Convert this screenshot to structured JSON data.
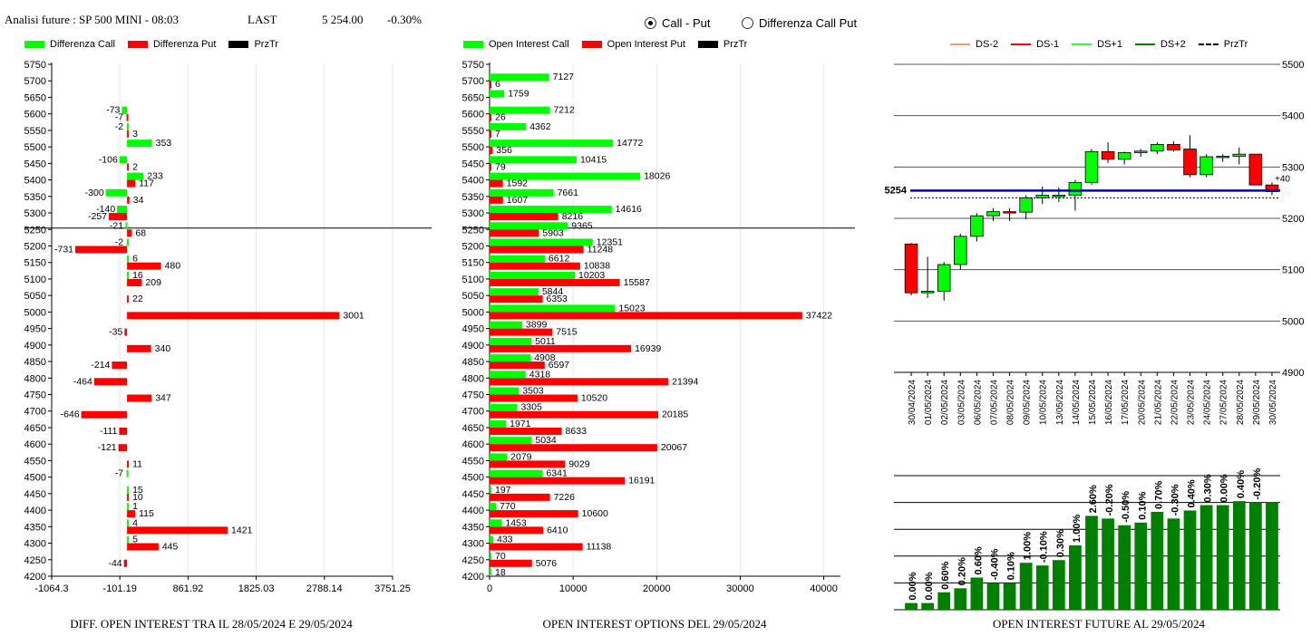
{
  "header": {
    "title": "Analisi future : SP 500 MINI - 08:03",
    "last_label": "LAST",
    "last_value": "5 254.00",
    "change": "-0.30%"
  },
  "view_mode": {
    "options": [
      "Call - Put",
      "Differenza Call Put"
    ],
    "selected": "Call - Put"
  },
  "colors": {
    "call": "#00ff00",
    "put": "#ff0000",
    "price": "#0000cc",
    "bar": "#008000"
  },
  "legend1": [
    "Differenza Call",
    "Differenza Put",
    "PrzTr"
  ],
  "legend2": [
    "Open Interest Call",
    "Open Interest Put",
    "PrzTr"
  ],
  "legend3": [
    "DS-2",
    "DS-1",
    "DS+1",
    "DS+2",
    "PrzTr"
  ],
  "captions": {
    "chart1": "DIFF. OPEN INTEREST TRA IL 28/05/2024 E 29/05/2024",
    "chart2": "OPEN INTEREST OPTIONS DEL 29/05/2024",
    "chart3": "OPEN INTEREST FUTURE AL 29/05/2024"
  },
  "chart_data": [
    {
      "type": "bar",
      "orientation": "horizontal",
      "strikes": [
        5750,
        5700,
        5650,
        5600,
        5550,
        5500,
        5450,
        5400,
        5350,
        5300,
        5250,
        5200,
        5150,
        5100,
        5050,
        5000,
        4950,
        4900,
        4850,
        4800,
        4750,
        4700,
        4650,
        4600,
        4550,
        4500,
        4450,
        4400,
        4350,
        4300,
        4250,
        4200
      ],
      "series": [
        {
          "name": "Differenza Call",
          "values": [
            null,
            null,
            null,
            -73,
            -2,
            353,
            -106,
            233,
            -300,
            -140,
            -21,
            -2,
            6,
            16,
            null,
            null,
            null,
            null,
            null,
            null,
            null,
            null,
            null,
            null,
            null,
            -7,
            15,
            1,
            4,
            5,
            null,
            null
          ]
        },
        {
          "name": "Differenza Put",
          "values": [
            null,
            null,
            null,
            -7,
            3,
            null,
            2,
            117,
            34,
            -257,
            68,
            -731,
            480,
            209,
            22,
            3001,
            -35,
            340,
            -214,
            -464,
            347,
            -646,
            -111,
            -121,
            11,
            null,
            10,
            115,
            1421,
            445,
            -44,
            null
          ]
        }
      ],
      "price_level": 5254,
      "xticks": [
        "-1064.3",
        "-101.19",
        "861.92",
        "1825.03",
        "2788.14",
        "3751.25"
      ],
      "xlim": [
        -1064.3,
        3751.25
      ]
    },
    {
      "type": "bar",
      "orientation": "horizontal",
      "strikes": [
        5750,
        5700,
        5650,
        5600,
        5550,
        5500,
        5450,
        5400,
        5350,
        5300,
        5250,
        5200,
        5150,
        5100,
        5050,
        5000,
        4950,
        4900,
        4850,
        4800,
        4750,
        4700,
        4650,
        4600,
        4550,
        4500,
        4450,
        4400,
        4350,
        4300,
        4250,
        4200
      ],
      "series": [
        {
          "name": "Open Interest Call",
          "values": [
            null,
            7127,
            1759,
            7212,
            4362,
            14772,
            10415,
            18026,
            7661,
            14616,
            9365,
            12351,
            6612,
            10203,
            5844,
            15023,
            3899,
            5011,
            4908,
            4318,
            3503,
            3305,
            1971,
            5034,
            2079,
            6341,
            197,
            770,
            1453,
            433,
            70,
            18
          ]
        },
        {
          "name": "Open Interest Put",
          "values": [
            null,
            6,
            null,
            26,
            7,
            356,
            79,
            1592,
            1607,
            8216,
            5903,
            11248,
            10838,
            15587,
            6353,
            37422,
            7515,
            16939,
            6597,
            21394,
            10520,
            20185,
            8633,
            20067,
            9029,
            16191,
            7226,
            10600,
            6410,
            11138,
            5076,
            null
          ]
        }
      ],
      "price_level": 5254,
      "xticks": [
        "0",
        "10000",
        "20000",
        "30000",
        "40000"
      ],
      "xlim": [
        0,
        42000
      ]
    },
    {
      "type": "candlestick",
      "dates": [
        "30/04/2024",
        "01/05/2024",
        "02/05/2024",
        "03/05/2024",
        "06/05/2024",
        "07/05/2024",
        "08/05/2024",
        "09/05/2024",
        "10/05/2024",
        "13/05/2024",
        "14/05/2024",
        "15/05/2024",
        "16/05/2024",
        "17/05/2024",
        "20/05/2024",
        "21/05/2024",
        "22/05/2024",
        "23/05/2024",
        "24/05/2024",
        "27/05/2024",
        "28/05/2024",
        "29/05/2024",
        "30/05/2024"
      ],
      "ohlc": [
        [
          5150,
          5152,
          5050,
          5055
        ],
        [
          5055,
          5125,
          5045,
          5058
        ],
        [
          5058,
          5115,
          5040,
          5110
        ],
        [
          5110,
          5170,
          5100,
          5165
        ],
        [
          5165,
          5210,
          5155,
          5205
        ],
        [
          5205,
          5220,
          5195,
          5213
        ],
        [
          5213,
          5220,
          5195,
          5212
        ],
        [
          5212,
          5245,
          5198,
          5240
        ],
        [
          5240,
          5262,
          5228,
          5245
        ],
        [
          5245,
          5260,
          5232,
          5245
        ],
        [
          5245,
          5275,
          5215,
          5270
        ],
        [
          5270,
          5335,
          5265,
          5330
        ],
        [
          5330,
          5348,
          5308,
          5315
        ],
        [
          5315,
          5330,
          5305,
          5328
        ],
        [
          5328,
          5335,
          5320,
          5331
        ],
        [
          5331,
          5348,
          5325,
          5344
        ],
        [
          5344,
          5350,
          5330,
          5333
        ],
        [
          5335,
          5362,
          5280,
          5285
        ],
        [
          5285,
          5325,
          5280,
          5320
        ],
        [
          5320,
          5325,
          5310,
          5321
        ],
        [
          5321,
          5338,
          5305,
          5325
        ],
        [
          5325,
          5325,
          5265,
          5265
        ],
        [
          5265,
          5270,
          5245,
          5252
        ]
      ],
      "price_level": 5254,
      "price_label": "5254",
      "change_label": "+40",
      "yticks": [
        "5500",
        "5400",
        "5300",
        "5200",
        "5100",
        "5000",
        "4900"
      ],
      "ylim": [
        4900,
        5500
      ]
    },
    {
      "type": "bar",
      "dates": [
        "30/04/2024",
        "01/05/2024",
        "02/05/2024",
        "03/05/2024",
        "06/05/2024",
        "07/05/2024",
        "08/05/2024",
        "09/05/2024",
        "10/05/2024",
        "13/05/2024",
        "14/05/2024",
        "15/05/2024",
        "16/05/2024",
        "17/05/2024",
        "20/05/2024",
        "21/05/2024",
        "22/05/2024",
        "23/05/2024",
        "24/05/2024",
        "27/05/2024",
        "28/05/2024",
        "29/05/2024",
        "30/05/2024"
      ],
      "values": [
        5,
        5,
        13,
        16,
        24,
        20,
        20,
        35,
        33,
        37,
        48,
        70,
        68,
        63,
        65,
        73,
        68,
        74,
        78,
        78,
        81,
        80,
        80
      ],
      "labels": [
        "0.00%",
        "0.00%",
        "0.60%",
        "0.20%",
        "0.60%",
        "-0.40%",
        "0.10%",
        "1.00%",
        "-0.10%",
        "0.30%",
        "1.00%",
        "2.60%",
        "-0.20%",
        "-0.50%",
        "0.10%",
        "0.70%",
        "-0.30%",
        "0.40%",
        "0.30%",
        "0.00%",
        "0.40%",
        "-0.20%",
        ""
      ]
    }
  ]
}
